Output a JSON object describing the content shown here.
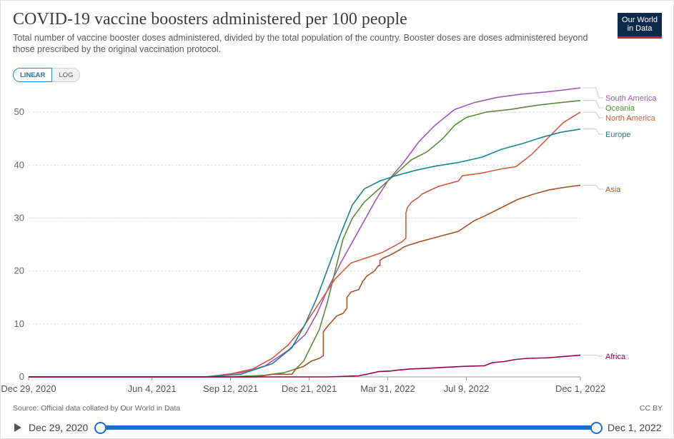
{
  "header": {
    "title": "COVID-19 vaccine boosters administered per 100 people",
    "subtitle": "Total number of vaccine booster doses administered, divided by the total population of the country. Booster doses are doses administered beyond those prescribed by the original vaccination protocol.",
    "logo_line1": "Our World",
    "logo_line2": "in Data"
  },
  "controls": {
    "linear_label": "LINEAR",
    "log_label": "LOG",
    "selected": "LINEAR"
  },
  "footer": {
    "source": "Source: Official data collated by Our World in Data",
    "license": "CC BY"
  },
  "timeline": {
    "start_label": "Dec 29, 2020",
    "end_label": "Dec 1, 2022",
    "start_position": 0,
    "end_position": 1
  },
  "colors": {
    "grid": "#dddddd",
    "axis_text": "#666666",
    "accent": "#1a6fd6"
  },
  "chart_data": {
    "type": "line",
    "title": "COVID-19 vaccine boosters administered per 100 people",
    "xlabel": "",
    "ylabel": "",
    "x_unit": "days since Dec 29, 2020",
    "xlim": [
      0,
      702
    ],
    "ylim": [
      0,
      55
    ],
    "yticks": [
      0,
      10,
      20,
      30,
      40,
      50
    ],
    "xticks": [
      {
        "value": 0,
        "label": "Dec 29, 2020"
      },
      {
        "value": 157,
        "label": "Jun 4, 2021"
      },
      {
        "value": 257,
        "label": "Sep 12, 2021"
      },
      {
        "value": 357,
        "label": "Dec 21, 2021"
      },
      {
        "value": 457,
        "label": "Mar 31, 2022"
      },
      {
        "value": 557,
        "label": "Jul 9, 2022"
      },
      {
        "value": 702,
        "label": "Dec 1, 2022"
      }
    ],
    "grid": true,
    "series": [
      {
        "name": "South America",
        "color": "#a057b9",
        "points": [
          [
            0,
            0
          ],
          [
            225,
            0
          ],
          [
            270,
            0.8
          ],
          [
            300,
            2
          ],
          [
            330,
            5
          ],
          [
            352,
            8
          ],
          [
            367,
            12
          ],
          [
            382,
            17
          ],
          [
            397,
            21.5
          ],
          [
            412,
            25.5
          ],
          [
            427,
            29.5
          ],
          [
            442,
            33.5
          ],
          [
            457,
            37
          ],
          [
            477,
            40.5
          ],
          [
            497,
            44.5
          ],
          [
            517,
            47.5
          ],
          [
            542,
            50.5
          ],
          [
            567,
            51.8
          ],
          [
            597,
            52.8
          ],
          [
            627,
            53.4
          ],
          [
            657,
            53.8
          ],
          [
            682,
            54.2
          ],
          [
            702,
            54.6
          ]
        ]
      },
      {
        "name": "Oceania",
        "color": "#5b8a3c",
        "points": [
          [
            0,
            0
          ],
          [
            255,
            0
          ],
          [
            300,
            0.3
          ],
          [
            325,
            0.8
          ],
          [
            340,
            1.5
          ],
          [
            350,
            3
          ],
          [
            360,
            6
          ],
          [
            370,
            9
          ],
          [
            380,
            14
          ],
          [
            390,
            20
          ],
          [
            400,
            26
          ],
          [
            412,
            30
          ],
          [
            427,
            33
          ],
          [
            442,
            35
          ],
          [
            457,
            37
          ],
          [
            472,
            39
          ],
          [
            487,
            41
          ],
          [
            507,
            42.5
          ],
          [
            527,
            45
          ],
          [
            542,
            47.5
          ],
          [
            557,
            49
          ],
          [
            582,
            50
          ],
          [
            612,
            50.5
          ],
          [
            647,
            51.3
          ],
          [
            677,
            51.8
          ],
          [
            702,
            52.2
          ]
        ]
      },
      {
        "name": "North America",
        "color": "#d35b3c",
        "points": [
          [
            0,
            0
          ],
          [
            225,
            0
          ],
          [
            255,
            0.5
          ],
          [
            285,
            1.5
          ],
          [
            310,
            3.5
          ],
          [
            330,
            6
          ],
          [
            350,
            9.5
          ],
          [
            370,
            14
          ],
          [
            390,
            18.5
          ],
          [
            410,
            21.5
          ],
          [
            430,
            22.5
          ],
          [
            450,
            23.5
          ],
          [
            475,
            25.5
          ],
          [
            480,
            26.2
          ],
          [
            480,
            26.5
          ],
          [
            480,
            31
          ],
          [
            482,
            32
          ],
          [
            487,
            33
          ],
          [
            497,
            34
          ],
          [
            500,
            34.5
          ],
          [
            507,
            35
          ],
          [
            522,
            36
          ],
          [
            547,
            37
          ],
          [
            552,
            38
          ],
          [
            577,
            38.5
          ],
          [
            602,
            39.3
          ],
          [
            620,
            39.7
          ],
          [
            640,
            42
          ],
          [
            660,
            45
          ],
          [
            680,
            48
          ],
          [
            702,
            50
          ]
        ]
      },
      {
        "name": "Europe",
        "color": "#1a838f",
        "points": [
          [
            0,
            0
          ],
          [
            225,
            0
          ],
          [
            270,
            0.5
          ],
          [
            310,
            2.5
          ],
          [
            335,
            5.5
          ],
          [
            352,
            10
          ],
          [
            367,
            15
          ],
          [
            382,
            21
          ],
          [
            397,
            27
          ],
          [
            412,
            32.5
          ],
          [
            427,
            35.5
          ],
          [
            447,
            37
          ],
          [
            467,
            38
          ],
          [
            492,
            39
          ],
          [
            517,
            39.8
          ],
          [
            547,
            40.5
          ],
          [
            577,
            41.5
          ],
          [
            602,
            43
          ],
          [
            627,
            44
          ],
          [
            652,
            45.2
          ],
          [
            677,
            46.2
          ],
          [
            702,
            46.8
          ]
        ]
      },
      {
        "name": "Asia",
        "color": "#a85124",
        "points": [
          [
            0,
            0
          ],
          [
            290,
            0
          ],
          [
            310,
            0.5
          ],
          [
            335,
            0.5
          ],
          [
            340,
            1.5
          ],
          [
            350,
            2
          ],
          [
            360,
            3
          ],
          [
            370,
            3.5
          ],
          [
            375,
            4
          ],
          [
            375,
            8.5
          ],
          [
            380,
            9.5
          ],
          [
            392,
            11.5
          ],
          [
            400,
            12
          ],
          [
            405,
            13
          ],
          [
            405,
            15
          ],
          [
            410,
            16
          ],
          [
            420,
            16.5
          ],
          [
            425,
            18
          ],
          [
            430,
            19
          ],
          [
            440,
            20
          ],
          [
            445,
            21
          ],
          [
            447,
            21
          ],
          [
            447,
            22
          ],
          [
            452,
            22.5
          ],
          [
            460,
            23
          ],
          [
            472,
            24
          ],
          [
            477,
            24.5
          ],
          [
            482,
            24.8
          ],
          [
            497,
            25.5
          ],
          [
            522,
            26.5
          ],
          [
            547,
            27.5
          ],
          [
            567,
            29.5
          ],
          [
            582,
            30.5
          ],
          [
            602,
            32
          ],
          [
            622,
            33.5
          ],
          [
            642,
            34.5
          ],
          [
            662,
            35.3
          ],
          [
            682,
            35.8
          ],
          [
            702,
            36.2
          ]
        ]
      },
      {
        "name": "Africa",
        "color": "#970046",
        "points": [
          [
            0,
            0
          ],
          [
            380,
            0
          ],
          [
            420,
            0.2
          ],
          [
            430,
            0.5
          ],
          [
            445,
            1.0
          ],
          [
            460,
            1.1
          ],
          [
            470,
            1.3
          ],
          [
            485,
            1.5
          ],
          [
            505,
            1.6
          ],
          [
            530,
            1.8
          ],
          [
            555,
            2.0
          ],
          [
            580,
            2.1
          ],
          [
            590,
            2.7
          ],
          [
            605,
            2.9
          ],
          [
            620,
            3.3
          ],
          [
            635,
            3.5
          ],
          [
            660,
            3.6
          ],
          [
            685,
            3.9
          ],
          [
            702,
            4.1
          ]
        ]
      }
    ]
  }
}
